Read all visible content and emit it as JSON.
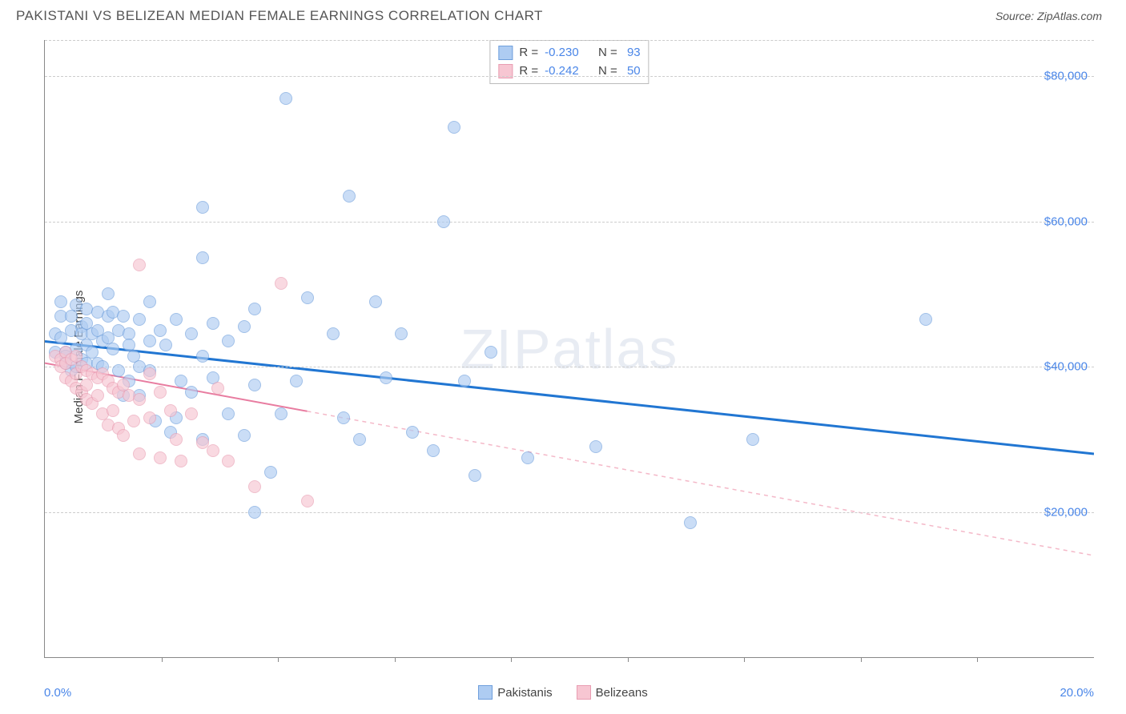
{
  "header": {
    "title": "PAKISTANI VS BELIZEAN MEDIAN FEMALE EARNINGS CORRELATION CHART",
    "source_label": "Source: ",
    "source_name": "ZipAtlas.com"
  },
  "chart": {
    "type": "scatter",
    "ylabel": "Median Female Earnings",
    "xlim": [
      0.0,
      20.0
    ],
    "ylim": [
      0,
      85000
    ],
    "x_start_label": "0.0%",
    "x_end_label": "20.0%",
    "y_ticks": [
      20000,
      40000,
      60000,
      80000
    ],
    "y_tick_labels": [
      "$20,000",
      "$40,000",
      "$60,000",
      "$80,000"
    ],
    "x_tick_count": 8,
    "background_color": "#ffffff",
    "grid_color": "#cccccc",
    "axis_color": "#888888",
    "watermark": "ZIPatlas",
    "series": [
      {
        "name": "Pakistanis",
        "fill": "#aeccf2",
        "stroke": "#6f9fdc",
        "points": [
          [
            0.2,
            42000
          ],
          [
            0.2,
            44500
          ],
          [
            0.3,
            47000
          ],
          [
            0.3,
            49000
          ],
          [
            0.3,
            44000
          ],
          [
            0.4,
            42000
          ],
          [
            0.4,
            41500
          ],
          [
            0.4,
            40500
          ],
          [
            0.5,
            47000
          ],
          [
            0.5,
            45000
          ],
          [
            0.5,
            39500
          ],
          [
            0.6,
            48500
          ],
          [
            0.6,
            42500
          ],
          [
            0.6,
            40000
          ],
          [
            0.7,
            45500
          ],
          [
            0.7,
            44500
          ],
          [
            0.7,
            41000
          ],
          [
            0.8,
            48000
          ],
          [
            0.8,
            46000
          ],
          [
            0.8,
            43000
          ],
          [
            0.8,
            40500
          ],
          [
            0.9,
            44500
          ],
          [
            0.9,
            42000
          ],
          [
            1.0,
            47500
          ],
          [
            1.0,
            45000
          ],
          [
            1.0,
            40500
          ],
          [
            1.1,
            43500
          ],
          [
            1.1,
            40000
          ],
          [
            1.2,
            50000
          ],
          [
            1.2,
            47000
          ],
          [
            1.2,
            44000
          ],
          [
            1.3,
            47500
          ],
          [
            1.3,
            42500
          ],
          [
            1.4,
            45000
          ],
          [
            1.4,
            39500
          ],
          [
            1.5,
            47000
          ],
          [
            1.5,
            36000
          ],
          [
            1.6,
            44500
          ],
          [
            1.6,
            43000
          ],
          [
            1.6,
            38000
          ],
          [
            1.7,
            41500
          ],
          [
            1.8,
            46500
          ],
          [
            1.8,
            40000
          ],
          [
            1.8,
            36000
          ],
          [
            2.0,
            49000
          ],
          [
            2.0,
            43500
          ],
          [
            2.0,
            39500
          ],
          [
            2.1,
            32500
          ],
          [
            2.2,
            45000
          ],
          [
            2.3,
            43000
          ],
          [
            2.4,
            31000
          ],
          [
            2.5,
            46500
          ],
          [
            2.5,
            33000
          ],
          [
            2.6,
            38000
          ],
          [
            2.8,
            44500
          ],
          [
            2.8,
            36500
          ],
          [
            3.0,
            62000
          ],
          [
            3.0,
            55000
          ],
          [
            3.0,
            41500
          ],
          [
            3.0,
            30000
          ],
          [
            3.2,
            46000
          ],
          [
            3.2,
            38500
          ],
          [
            3.5,
            43500
          ],
          [
            3.5,
            33500
          ],
          [
            3.8,
            45500
          ],
          [
            3.8,
            30500
          ],
          [
            4.0,
            48000
          ],
          [
            4.0,
            37500
          ],
          [
            4.0,
            20000
          ],
          [
            4.3,
            25500
          ],
          [
            4.5,
            33500
          ],
          [
            4.6,
            77000
          ],
          [
            4.8,
            38000
          ],
          [
            5.0,
            49500
          ],
          [
            5.5,
            44500
          ],
          [
            5.7,
            33000
          ],
          [
            5.8,
            63500
          ],
          [
            6.0,
            30000
          ],
          [
            6.3,
            49000
          ],
          [
            6.5,
            38500
          ],
          [
            6.8,
            44500
          ],
          [
            7.0,
            31000
          ],
          [
            7.4,
            28500
          ],
          [
            7.6,
            60000
          ],
          [
            7.8,
            73000
          ],
          [
            8.0,
            38000
          ],
          [
            8.2,
            25000
          ],
          [
            8.5,
            42000
          ],
          [
            9.2,
            27500
          ],
          [
            10.5,
            29000
          ],
          [
            12.3,
            18500
          ],
          [
            13.5,
            30000
          ],
          [
            16.8,
            46500
          ]
        ],
        "trend": {
          "x1": 0,
          "y1": 43500,
          "x2": 20,
          "y2": 28000,
          "solid_until_x": 20,
          "solid_stroke": "#2176d2",
          "width": 3
        },
        "stat_R": "-0.230",
        "stat_N": "93"
      },
      {
        "name": "Belizeans",
        "fill": "#f7c6d2",
        "stroke": "#e99db2",
        "points": [
          [
            0.2,
            41500
          ],
          [
            0.3,
            41000
          ],
          [
            0.3,
            40000
          ],
          [
            0.4,
            42000
          ],
          [
            0.4,
            40500
          ],
          [
            0.4,
            38500
          ],
          [
            0.5,
            41000
          ],
          [
            0.5,
            38000
          ],
          [
            0.6,
            41500
          ],
          [
            0.6,
            39000
          ],
          [
            0.6,
            37000
          ],
          [
            0.7,
            40000
          ],
          [
            0.7,
            36500
          ],
          [
            0.8,
            39500
          ],
          [
            0.8,
            37500
          ],
          [
            0.8,
            35500
          ],
          [
            0.9,
            39000
          ],
          [
            0.9,
            35000
          ],
          [
            1.0,
            38500
          ],
          [
            1.0,
            36000
          ],
          [
            1.1,
            39000
          ],
          [
            1.1,
            33500
          ],
          [
            1.2,
            38000
          ],
          [
            1.2,
            32000
          ],
          [
            1.3,
            37000
          ],
          [
            1.3,
            34000
          ],
          [
            1.4,
            36500
          ],
          [
            1.4,
            31500
          ],
          [
            1.5,
            37500
          ],
          [
            1.5,
            30500
          ],
          [
            1.6,
            36000
          ],
          [
            1.7,
            32500
          ],
          [
            1.8,
            54000
          ],
          [
            1.8,
            35500
          ],
          [
            1.8,
            28000
          ],
          [
            2.0,
            39000
          ],
          [
            2.0,
            33000
          ],
          [
            2.2,
            36500
          ],
          [
            2.2,
            27500
          ],
          [
            2.4,
            34000
          ],
          [
            2.5,
            30000
          ],
          [
            2.6,
            27000
          ],
          [
            2.8,
            33500
          ],
          [
            3.0,
            29500
          ],
          [
            3.2,
            28500
          ],
          [
            3.3,
            37000
          ],
          [
            3.5,
            27000
          ],
          [
            4.0,
            23500
          ],
          [
            4.5,
            51500
          ],
          [
            5.0,
            21500
          ]
        ],
        "trend": {
          "x1": 0,
          "y1": 40500,
          "x2": 20,
          "y2": 14000,
          "solid_until_x": 5,
          "solid_stroke": "#e87ca0",
          "dash_stroke": "#f4b8c8",
          "width": 2
        },
        "stat_R": "-0.242",
        "stat_N": "50"
      }
    ],
    "legend_labels": {
      "R": "R =",
      "N": "N ="
    }
  }
}
